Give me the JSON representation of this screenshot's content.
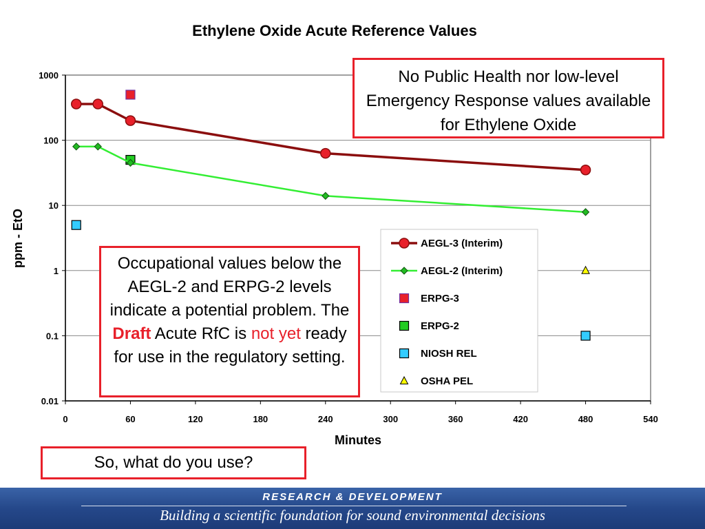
{
  "chart_data": {
    "type": "line",
    "title": "Ethylene Oxide Acute Reference Values",
    "xlabel": "Minutes",
    "ylabel": "ppm - EtO",
    "xlim": [
      0,
      540
    ],
    "ylim": [
      0.01,
      1000
    ],
    "y_scale": "log",
    "x_ticks": [
      "0",
      "60",
      "120",
      "180",
      "240",
      "300",
      "360",
      "420",
      "480",
      "540"
    ],
    "y_ticks": [
      "0.01",
      "0.1",
      "1",
      "10",
      "100",
      "1000"
    ],
    "grid": "horizontal",
    "legend_position": "lower-right",
    "series": [
      {
        "name": "AEGL-3 (Interim)",
        "style": "line-circle",
        "color": "#8b0e0e",
        "marker_color": "#e8202a",
        "points": [
          [
            10,
            360
          ],
          [
            30,
            360
          ],
          [
            60,
            200
          ],
          [
            240,
            63
          ],
          [
            480,
            35
          ]
        ]
      },
      {
        "name": "AEGL-2 (Interim)",
        "style": "line-diamond",
        "color": "#33ee33",
        "marker_color": "#22bb22",
        "points": [
          [
            10,
            80
          ],
          [
            30,
            80
          ],
          [
            60,
            45
          ],
          [
            240,
            14
          ],
          [
            480,
            7.9
          ]
        ]
      },
      {
        "name": "ERPG-3",
        "style": "square",
        "color": "#e8202a",
        "edge_color": "#7030a0",
        "points": [
          [
            60,
            500
          ]
        ]
      },
      {
        "name": "ERPG-2",
        "style": "square",
        "color": "#22cc22",
        "edge_color": "#000000",
        "points": [
          [
            60,
            50
          ]
        ]
      },
      {
        "name": "NIOSH REL",
        "style": "square",
        "color": "#33ccff",
        "edge_color": "#000000",
        "points": [
          [
            10,
            5
          ],
          [
            480,
            0.1
          ]
        ]
      },
      {
        "name": "OSHA PEL",
        "style": "triangle",
        "color": "#ffff00",
        "edge_color": "#000000",
        "points": [
          [
            10,
            5
          ],
          [
            480,
            1
          ]
        ]
      }
    ]
  },
  "callouts": {
    "top": "No Public Health nor low-level Emergency Response values available for Ethylene Oxide",
    "mid_part1": "Occupational values below the AEGL-2 and ERPG-2 levels indicate a potential problem.  The",
    "mid_draft": "Draft",
    "mid_part2": "Acute RfC is",
    "mid_notyet": "not yet",
    "mid_part3": "ready for use in the regulatory setting.",
    "bottom": "So, what do you use?"
  },
  "footer": {
    "line1": "RESEARCH &  DEVELOPMENT",
    "line2": "Building a scientific foundation for sound environmental decisions"
  }
}
